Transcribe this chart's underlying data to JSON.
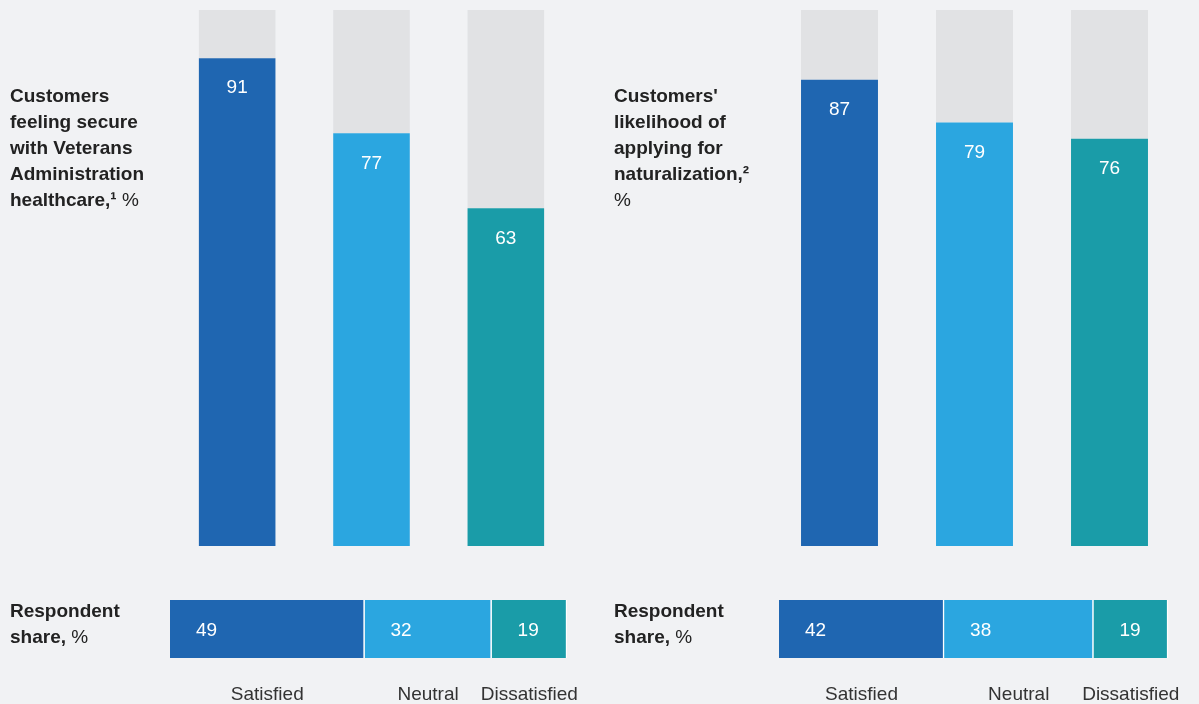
{
  "chart_data": [
    {
      "type": "bar",
      "title": "Customers feeling secure with Veterans Administration healthcare,¹ %",
      "categories": [
        null,
        null,
        null
      ],
      "stacked": true,
      "ylim": [
        0,
        100
      ],
      "tick_labels": false,
      "legend": false,
      "series": [
        {
          "values": [
            91,
            77,
            63
          ],
          "colors": [
            "#1f66b1",
            "#2ba6e0",
            "#1a9ca8"
          ],
          "value_labels": [
            "91",
            "77",
            "63"
          ]
        },
        {
          "color": "#e1e2e4",
          "values": [
            9,
            23,
            37
          ]
        }
      ]
    },
    {
      "type": "bar",
      "title": "Respondent share, %",
      "categories": [
        null
      ],
      "stacked": true,
      "orientation": "horizontal",
      "xlim": [
        0,
        100
      ],
      "tick_labels": false,
      "legend": false,
      "series": [
        {
          "name": "Satisfied",
          "color": "#1f66b1",
          "values": [
            49
          ],
          "value_labels": [
            "49"
          ]
        },
        {
          "name": "Neutral",
          "color": "#2ba6e0",
          "values": [
            32
          ],
          "value_labels": [
            "32"
          ]
        },
        {
          "name": "Dissatisfied",
          "color": "#1a9ca8",
          "values": [
            19
          ],
          "value_labels": [
            "19"
          ]
        }
      ]
    },
    {
      "type": "bar",
      "title": "Customers' likelihood of applying for naturalization,² %",
      "categories": [
        null,
        null,
        null
      ],
      "stacked": true,
      "ylim": [
        0,
        100
      ],
      "tick_labels": false,
      "legend": false,
      "series": [
        {
          "values": [
            87,
            79,
            76
          ],
          "colors": [
            "#1f66b1",
            "#2ba6e0",
            "#1a9ca8"
          ],
          "value_labels": [
            "87",
            "79",
            "76"
          ]
        },
        {
          "color": "#e1e2e4",
          "values": [
            13,
            21,
            24
          ]
        }
      ]
    },
    {
      "type": "bar",
      "title": "Respondent share, %",
      "categories": [
        null
      ],
      "stacked": true,
      "orientation": "horizontal",
      "xlim": [
        0,
        100
      ],
      "tick_labels": false,
      "legend": false,
      "series": [
        {
          "name": "Satisfied",
          "color": "#1f66b1",
          "values": [
            42
          ],
          "value_labels": [
            "42"
          ]
        },
        {
          "name": "Neutral",
          "color": "#2ba6e0",
          "values": [
            38
          ],
          "value_labels": [
            "38"
          ]
        },
        {
          "name": "Dissatisfied",
          "color": "#1a9ca8",
          "values": [
            19
          ],
          "value_labels": [
            "19"
          ]
        }
      ]
    }
  ]
}
